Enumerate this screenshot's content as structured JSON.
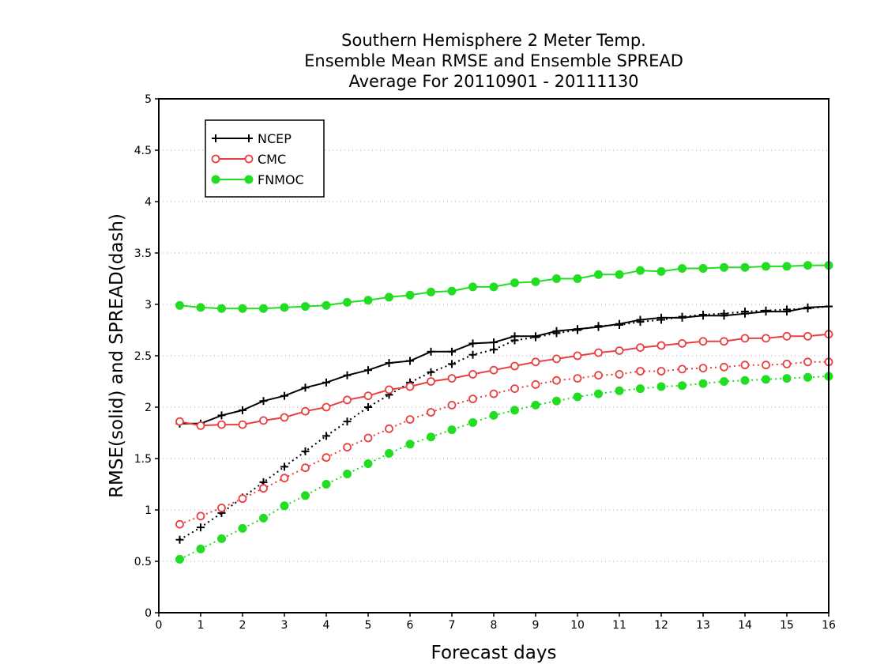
{
  "chart_data": {
    "type": "line",
    "title": [
      "Southern Hemisphere 2 Meter Temp.",
      "Ensemble Mean RMSE and Ensemble SPREAD",
      "Average For 20110901 - 20111130"
    ],
    "xlabel": "Forecast days",
    "ylabel": "RMSE(solid) and SPREAD(dash)",
    "xlim": [
      0,
      16
    ],
    "ylim": [
      0,
      5
    ],
    "x_ticks": [
      "0",
      "1",
      "2",
      "3",
      "4",
      "5",
      "6",
      "7",
      "8",
      "9",
      "10",
      "11",
      "12",
      "13",
      "14",
      "15",
      "16"
    ],
    "y_ticks": [
      "0",
      "0.5",
      "1",
      "1.5",
      "2",
      "2.5",
      "3",
      "3.5",
      "4",
      "4.5",
      "5"
    ],
    "grid": "horizontal dotted",
    "legend_position": "top-left",
    "x": [
      0.5,
      1,
      1.5,
      2,
      2.5,
      3,
      3.5,
      4,
      4.5,
      5,
      5.5,
      6,
      6.5,
      7,
      7.5,
      8,
      8.5,
      9,
      9.5,
      10,
      10.5,
      11,
      11.5,
      12,
      12.5,
      13,
      13.5,
      14,
      14.5,
      15,
      15.5,
      16
    ],
    "series": [
      {
        "name": "NCEP",
        "color": "#000000",
        "marker": "plus",
        "rmse": [
          1.84,
          1.84,
          1.92,
          1.97,
          2.06,
          2.11,
          2.19,
          2.24,
          2.31,
          2.36,
          2.43,
          2.45,
          2.54,
          2.54,
          2.62,
          2.63,
          2.69,
          2.69,
          2.74,
          2.76,
          2.78,
          2.81,
          2.85,
          2.87,
          2.87,
          2.89,
          2.89,
          2.91,
          2.93,
          2.93,
          2.97,
          2.98
        ],
        "spread": [
          0.71,
          0.83,
          0.97,
          1.12,
          1.27,
          1.42,
          1.57,
          1.72,
          1.86,
          2.0,
          2.12,
          2.24,
          2.34,
          2.42,
          2.51,
          2.56,
          2.65,
          2.68,
          2.72,
          2.75,
          2.79,
          2.8,
          2.83,
          2.85,
          2.88,
          2.9,
          2.91,
          2.93,
          2.94,
          2.95,
          2.96,
          2.98
        ]
      },
      {
        "name": "CMC",
        "color": "#e84040",
        "marker": "open-circle",
        "rmse": [
          1.86,
          1.82,
          1.83,
          1.83,
          1.87,
          1.9,
          1.96,
          2.0,
          2.07,
          2.11,
          2.17,
          2.2,
          2.25,
          2.28,
          2.32,
          2.36,
          2.4,
          2.44,
          2.47,
          2.5,
          2.53,
          2.55,
          2.58,
          2.6,
          2.62,
          2.64,
          2.64,
          2.67,
          2.67,
          2.69,
          2.69,
          2.71
        ],
        "spread": [
          0.86,
          0.94,
          1.02,
          1.11,
          1.21,
          1.31,
          1.41,
          1.51,
          1.61,
          1.7,
          1.79,
          1.88,
          1.95,
          2.02,
          2.08,
          2.13,
          2.18,
          2.22,
          2.26,
          2.28,
          2.31,
          2.32,
          2.35,
          2.35,
          2.37,
          2.38,
          2.39,
          2.41,
          2.41,
          2.42,
          2.44,
          2.44
        ]
      },
      {
        "name": "FNMOC",
        "color": "#22dd22",
        "marker": "filled-circle",
        "rmse": [
          2.99,
          2.97,
          2.96,
          2.96,
          2.96,
          2.97,
          2.98,
          2.99,
          3.02,
          3.04,
          3.07,
          3.09,
          3.12,
          3.13,
          3.17,
          3.17,
          3.21,
          3.22,
          3.25,
          3.25,
          3.29,
          3.29,
          3.33,
          3.32,
          3.35,
          3.35,
          3.36,
          3.36,
          3.37,
          3.37,
          3.38,
          3.38
        ],
        "spread": [
          0.52,
          0.62,
          0.72,
          0.82,
          0.92,
          1.04,
          1.14,
          1.25,
          1.35,
          1.45,
          1.55,
          1.64,
          1.71,
          1.78,
          1.85,
          1.92,
          1.97,
          2.02,
          2.06,
          2.1,
          2.13,
          2.16,
          2.18,
          2.2,
          2.21,
          2.23,
          2.25,
          2.26,
          2.27,
          2.28,
          2.29,
          2.3
        ]
      }
    ]
  }
}
